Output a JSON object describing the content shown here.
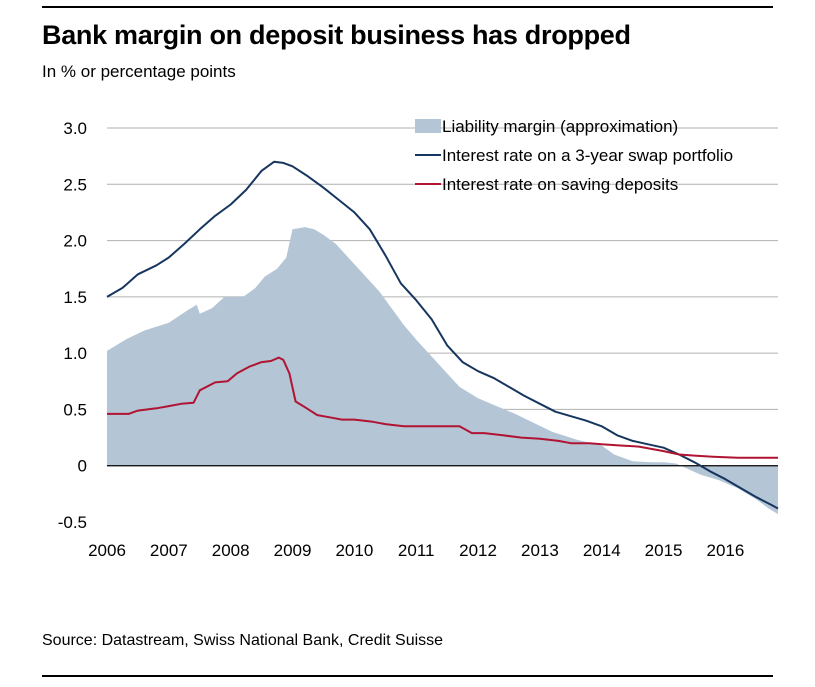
{
  "header": {
    "title": "Bank margin on deposit business has dropped",
    "subtitle": "In % or percentage points"
  },
  "footer": {
    "source": "Source: Datastream, Swiss National Bank, Credit Suisse"
  },
  "colors": {
    "area": "#b4c5d6",
    "swap_line": "#17365f",
    "saving_line": "#b01432",
    "grid": "#b0b0b0",
    "zero_line": "#000000"
  },
  "chart_data": {
    "type": "line",
    "title": "Bank margin on deposit business has dropped",
    "subtitle": "In % or percentage points",
    "xlabel": "",
    "ylabel": "",
    "xlim": [
      2006.0,
      2016.85
    ],
    "ylim": [
      -0.5,
      3.0
    ],
    "y_ticks": [
      {
        "value": 3.0,
        "label": "3.0"
      },
      {
        "value": 2.5,
        "label": "2.5"
      },
      {
        "value": 2.0,
        "label": "2.0"
      },
      {
        "value": 1.5,
        "label": "1.5"
      },
      {
        "value": 1.0,
        "label": "1.0"
      },
      {
        "value": 0.5,
        "label": "0.5"
      },
      {
        "value": 0,
        "label": "0"
      },
      {
        "value": -0.5,
        "label": "-0.5"
      }
    ],
    "x_ticks": [
      {
        "value": 2006,
        "label": "2006"
      },
      {
        "value": 2007,
        "label": "2007"
      },
      {
        "value": 2008,
        "label": "2008"
      },
      {
        "value": 2009,
        "label": "2009"
      },
      {
        "value": 2010,
        "label": "2010"
      },
      {
        "value": 2011,
        "label": "2011"
      },
      {
        "value": 2012,
        "label": "2012"
      },
      {
        "value": 2013,
        "label": "2013"
      },
      {
        "value": 2014,
        "label": "2014"
      },
      {
        "value": 2015,
        "label": "2015"
      },
      {
        "value": 2016,
        "label": "2016"
      }
    ],
    "grid": true,
    "legend_position": "top-right",
    "series": [
      {
        "name": "Liability margin (approximation)",
        "kind": "area",
        "color": "#b4c5d6",
        "points": [
          [
            2006.0,
            1.02
          ],
          [
            2006.3,
            1.12
          ],
          [
            2006.6,
            1.2
          ],
          [
            2007.0,
            1.27
          ],
          [
            2007.3,
            1.38
          ],
          [
            2007.45,
            1.43
          ],
          [
            2007.5,
            1.35
          ],
          [
            2007.7,
            1.4
          ],
          [
            2007.9,
            1.5
          ],
          [
            2008.2,
            1.5
          ],
          [
            2008.4,
            1.58
          ],
          [
            2008.55,
            1.68
          ],
          [
            2008.75,
            1.75
          ],
          [
            2008.9,
            1.85
          ],
          [
            2009.0,
            2.1
          ],
          [
            2009.2,
            2.12
          ],
          [
            2009.35,
            2.1
          ],
          [
            2009.5,
            2.05
          ],
          [
            2009.7,
            1.97
          ],
          [
            2009.9,
            1.85
          ],
          [
            2010.15,
            1.7
          ],
          [
            2010.4,
            1.55
          ],
          [
            2010.6,
            1.4
          ],
          [
            2010.8,
            1.25
          ],
          [
            2011.0,
            1.12
          ],
          [
            2011.2,
            1.0
          ],
          [
            2011.45,
            0.85
          ],
          [
            2011.7,
            0.7
          ],
          [
            2012.0,
            0.6
          ],
          [
            2012.3,
            0.53
          ],
          [
            2012.6,
            0.46
          ],
          [
            2012.9,
            0.38
          ],
          [
            2013.2,
            0.3
          ],
          [
            2013.6,
            0.23
          ],
          [
            2013.9,
            0.19
          ],
          [
            2014.0,
            0.18
          ],
          [
            2014.2,
            0.1
          ],
          [
            2014.5,
            0.04
          ],
          [
            2014.8,
            0.03
          ],
          [
            2015.0,
            0.03
          ],
          [
            2015.2,
            0.02
          ],
          [
            2015.4,
            -0.03
          ],
          [
            2015.6,
            -0.08
          ],
          [
            2015.9,
            -0.13
          ],
          [
            2016.2,
            -0.2
          ],
          [
            2016.5,
            -0.3
          ],
          [
            2016.7,
            -0.38
          ],
          [
            2016.85,
            -0.43
          ]
        ]
      },
      {
        "name": "Interest rate on a 3-year swap portfolio",
        "kind": "line",
        "color": "#17365f",
        "points": [
          [
            2006.0,
            1.5
          ],
          [
            2006.25,
            1.58
          ],
          [
            2006.5,
            1.7
          ],
          [
            2006.8,
            1.78
          ],
          [
            2007.0,
            1.85
          ],
          [
            2007.25,
            1.97
          ],
          [
            2007.5,
            2.1
          ],
          [
            2007.75,
            2.22
          ],
          [
            2008.0,
            2.32
          ],
          [
            2008.25,
            2.45
          ],
          [
            2008.5,
            2.62
          ],
          [
            2008.7,
            2.7
          ],
          [
            2008.85,
            2.69
          ],
          [
            2009.0,
            2.66
          ],
          [
            2009.25,
            2.57
          ],
          [
            2009.5,
            2.47
          ],
          [
            2009.75,
            2.36
          ],
          [
            2010.0,
            2.25
          ],
          [
            2010.25,
            2.1
          ],
          [
            2010.5,
            1.87
          ],
          [
            2010.75,
            1.62
          ],
          [
            2011.0,
            1.47
          ],
          [
            2011.25,
            1.3
          ],
          [
            2011.5,
            1.07
          ],
          [
            2011.75,
            0.92
          ],
          [
            2012.0,
            0.84
          ],
          [
            2012.25,
            0.78
          ],
          [
            2012.5,
            0.7
          ],
          [
            2012.75,
            0.62
          ],
          [
            2013.0,
            0.55
          ],
          [
            2013.25,
            0.48
          ],
          [
            2013.5,
            0.44
          ],
          [
            2013.75,
            0.4
          ],
          [
            2014.0,
            0.35
          ],
          [
            2014.25,
            0.27
          ],
          [
            2014.5,
            0.22
          ],
          [
            2014.75,
            0.19
          ],
          [
            2015.0,
            0.16
          ],
          [
            2015.25,
            0.1
          ],
          [
            2015.5,
            0.03
          ],
          [
            2015.75,
            -0.05
          ],
          [
            2016.0,
            -0.12
          ],
          [
            2016.25,
            -0.2
          ],
          [
            2016.5,
            -0.28
          ],
          [
            2016.75,
            -0.35
          ],
          [
            2016.85,
            -0.38
          ]
        ]
      },
      {
        "name": "Interest rate on saving deposits",
        "kind": "line",
        "color": "#b01432",
        "points": [
          [
            2006.0,
            0.46
          ],
          [
            2006.35,
            0.46
          ],
          [
            2006.5,
            0.49
          ],
          [
            2006.8,
            0.51
          ],
          [
            2007.0,
            0.53
          ],
          [
            2007.2,
            0.55
          ],
          [
            2007.4,
            0.56
          ],
          [
            2007.5,
            0.67
          ],
          [
            2007.75,
            0.74
          ],
          [
            2007.95,
            0.75
          ],
          [
            2008.1,
            0.82
          ],
          [
            2008.3,
            0.88
          ],
          [
            2008.5,
            0.92
          ],
          [
            2008.65,
            0.93
          ],
          [
            2008.78,
            0.96
          ],
          [
            2008.85,
            0.94
          ],
          [
            2008.95,
            0.82
          ],
          [
            2009.05,
            0.57
          ],
          [
            2009.2,
            0.52
          ],
          [
            2009.4,
            0.45
          ],
          [
            2009.6,
            0.43
          ],
          [
            2009.8,
            0.41
          ],
          [
            2010.0,
            0.41
          ],
          [
            2010.3,
            0.39
          ],
          [
            2010.5,
            0.37
          ],
          [
            2010.8,
            0.35
          ],
          [
            2011.0,
            0.35
          ],
          [
            2011.3,
            0.35
          ],
          [
            2011.7,
            0.35
          ],
          [
            2011.9,
            0.29
          ],
          [
            2012.1,
            0.29
          ],
          [
            2012.4,
            0.27
          ],
          [
            2012.7,
            0.25
          ],
          [
            2013.0,
            0.24
          ],
          [
            2013.3,
            0.22
          ],
          [
            2013.5,
            0.2
          ],
          [
            2013.8,
            0.2
          ],
          [
            2014.0,
            0.19
          ],
          [
            2014.3,
            0.18
          ],
          [
            2014.6,
            0.17
          ],
          [
            2015.0,
            0.13
          ],
          [
            2015.25,
            0.1
          ],
          [
            2015.5,
            0.09
          ],
          [
            2015.8,
            0.08
          ],
          [
            2016.2,
            0.07
          ],
          [
            2016.85,
            0.07
          ]
        ]
      }
    ]
  }
}
